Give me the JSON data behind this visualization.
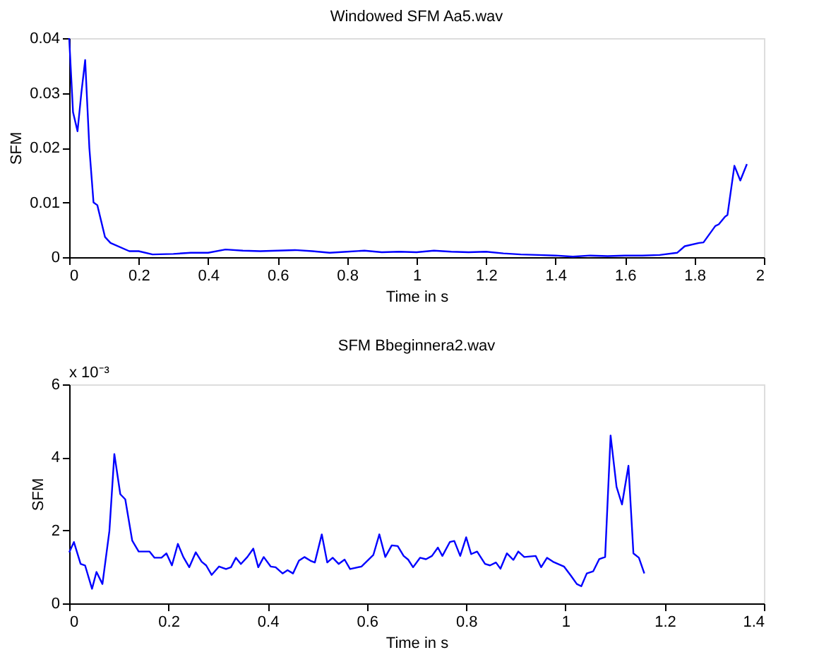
{
  "chart_data": [
    {
      "type": "line",
      "title": "Windowed SFM Aa5.wav",
      "xlabel": "Time in s",
      "ylabel": "SFM",
      "xlim": [
        0,
        2
      ],
      "ylim": [
        0,
        0.04
      ],
      "xticks": [
        0,
        0.2,
        0.4,
        0.6,
        0.8,
        1,
        1.2,
        1.4,
        1.6,
        1.8,
        2
      ],
      "yticks": [
        0,
        0.01,
        0.02,
        0.03,
        0.04
      ],
      "grid": false,
      "series": [
        {
          "color": "#0000ff",
          "x": [
            0,
            0.011,
            0.024,
            0.035,
            0.046,
            0.058,
            0.07,
            0.081,
            0.103,
            0.119,
            0.173,
            0.2,
            0.24,
            0.3,
            0.35,
            0.4,
            0.45,
            0.5,
            0.55,
            0.6,
            0.65,
            0.7,
            0.75,
            0.8,
            0.85,
            0.9,
            0.95,
            1.0,
            1.05,
            1.1,
            1.15,
            1.2,
            1.25,
            1.3,
            1.35,
            1.4,
            1.45,
            1.5,
            1.55,
            1.6,
            1.65,
            1.7,
            1.75,
            1.772,
            1.813,
            1.826,
            1.86,
            1.87,
            1.888,
            1.895,
            1.915,
            1.932,
            1.951
          ],
          "values": [
            0.04,
            0.0265,
            0.023,
            0.03,
            0.036,
            0.02,
            0.01,
            0.0095,
            0.0037,
            0.0026,
            0.0011,
            0.0011,
            0.0005,
            0.0006,
            0.0008,
            0.0008,
            0.0014,
            0.0012,
            0.0011,
            0.0012,
            0.0013,
            0.0011,
            0.0008,
            0.001,
            0.0012,
            0.0009,
            0.001,
            0.0009,
            0.0012,
            0.001,
            0.0009,
            0.001,
            0.0007,
            0.0005,
            0.0004,
            0.0003,
            0.0001,
            0.0003,
            0.0002,
            0.0003,
            0.0003,
            0.0004,
            0.0008,
            0.002,
            0.0026,
            0.0027,
            0.0057,
            0.006,
            0.0074,
            0.0077,
            0.0167,
            0.014,
            0.017
          ]
        }
      ]
    },
    {
      "type": "line",
      "title": "SFM Bbeginnera2.wav",
      "xlabel": "Time in s",
      "ylabel": "SFM",
      "annotations": [
        "x 10⁻³"
      ],
      "xlim": [
        0,
        1.4
      ],
      "ylim": [
        0,
        6
      ],
      "xticks": [
        0,
        0.2,
        0.4,
        0.6,
        0.8,
        1,
        1.2,
        1.4
      ],
      "yticks": [
        0,
        2,
        4,
        6
      ],
      "grid": false,
      "series": [
        {
          "color": "#0000ff",
          "x": [
            0,
            0.0095,
            0.023,
            0.032,
            0.046,
            0.055,
            0.067,
            0.081,
            0.091,
            0.103,
            0.113,
            0.127,
            0.14,
            0.162,
            0.172,
            0.186,
            0.196,
            0.207,
            0.219,
            0.23,
            0.242,
            0.255,
            0.267,
            0.276,
            0.287,
            0.302,
            0.316,
            0.326,
            0.336,
            0.346,
            0.359,
            0.371,
            0.381,
            0.392,
            0.406,
            0.416,
            0.43,
            0.44,
            0.451,
            0.463,
            0.474,
            0.486,
            0.495,
            0.509,
            0.52,
            0.531,
            0.543,
            0.555,
            0.566,
            0.589,
            0.613,
            0.625,
            0.637,
            0.65,
            0.662,
            0.674,
            0.683,
            0.693,
            0.707,
            0.719,
            0.731,
            0.743,
            0.752,
            0.767,
            0.776,
            0.788,
            0.8,
            0.81,
            0.822,
            0.838,
            0.848,
            0.86,
            0.869,
            0.882,
            0.895,
            0.905,
            0.917,
            0.94,
            0.951,
            0.963,
            0.975,
            0.997,
            1.011,
            1.023,
            1.032,
            1.043,
            1.056,
            1.068,
            1.08,
            1.091,
            1.103,
            1.114,
            1.127,
            1.137,
            1.148,
            1.159
          ],
          "values": [
            1.4,
            1.68,
            1.08,
            1.04,
            0.4,
            0.86,
            0.53,
            1.98,
            4.09,
            2.99,
            2.85,
            1.72,
            1.42,
            1.42,
            1.25,
            1.25,
            1.37,
            1.04,
            1.63,
            1.27,
            0.99,
            1.4,
            1.14,
            1.04,
            0.78,
            1.01,
            0.94,
            0.99,
            1.25,
            1.08,
            1.27,
            1.5,
            0.99,
            1.27,
            1.01,
            0.99,
            0.82,
            0.91,
            0.82,
            1.17,
            1.27,
            1.17,
            1.12,
            1.89,
            1.12,
            1.25,
            1.08,
            1.2,
            0.94,
            1.01,
            1.33,
            1.89,
            1.27,
            1.59,
            1.57,
            1.3,
            1.2,
            0.99,
            1.25,
            1.21,
            1.3,
            1.53,
            1.3,
            1.68,
            1.71,
            1.3,
            1.81,
            1.35,
            1.42,
            1.08,
            1.04,
            1.12,
            0.95,
            1.37,
            1.19,
            1.42,
            1.27,
            1.3,
            0.99,
            1.25,
            1.14,
            1.01,
            0.76,
            0.53,
            0.47,
            0.82,
            0.88,
            1.21,
            1.27,
            4.6,
            3.19,
            2.71,
            3.77,
            1.37,
            1.25,
            0.82
          ]
        }
      ]
    }
  ]
}
